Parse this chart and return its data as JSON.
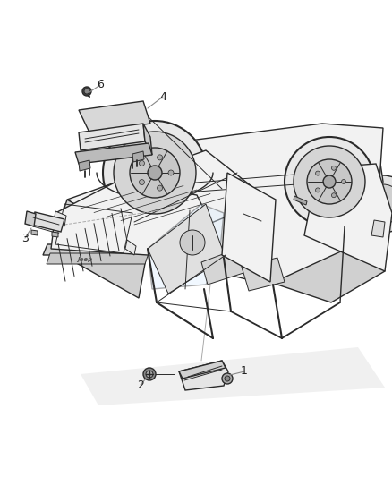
{
  "bg_color": "#ffffff",
  "line_color": "#2a2a2a",
  "gray_light": "#d8d8d8",
  "gray_mid": "#b0b0b0",
  "gray_dark": "#888888",
  "fig_width": 4.38,
  "fig_height": 5.33,
  "dpi": 100,
  "callout_fontsize": 9,
  "label_line_color": "#808080",
  "jeep_body_color": "#f2f2f2",
  "jeep_shadow_color": "#d0d0d0",
  "module_color": "#e5e5e5",
  "module_shadow": "#c0c0c0"
}
